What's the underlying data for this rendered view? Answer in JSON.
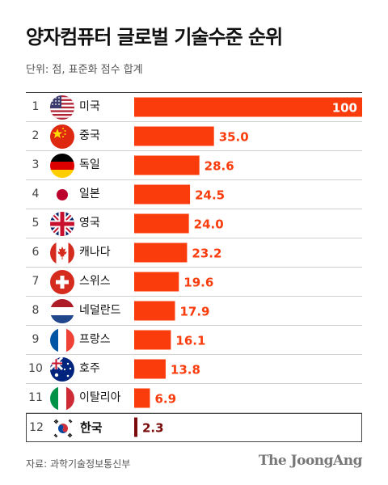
{
  "title": "양자컴퓨터 글로벌 기술수준 순위",
  "unit_note": "단위: 점, 표준화 점수 합계",
  "source": "자료: 과학기술정보통신부",
  "logo": "The JoongAng",
  "colors": {
    "bar": "#fa3c0c",
    "highlight_bar": "#7a0a0a",
    "label_inside": "#ffffff",
    "label_outside": "#fa3c0c",
    "highlight_label": "#7a0a0a"
  },
  "chart_data": {
    "type": "bar",
    "orientation": "horizontal",
    "categories": [
      "미국",
      "중국",
      "독일",
      "일본",
      "영국",
      "캐나다",
      "스위스",
      "네덜란드",
      "프랑스",
      "호주",
      "이탈리아",
      "한국"
    ],
    "ranks": [
      "1",
      "2",
      "3",
      "4",
      "5",
      "6",
      "7",
      "8",
      "9",
      "10",
      "11",
      "12"
    ],
    "values": [
      100,
      35.0,
      28.6,
      24.5,
      24.0,
      23.2,
      19.6,
      17.9,
      16.1,
      13.8,
      6.9,
      2.3
    ],
    "value_labels": [
      "100",
      "35.0",
      "28.6",
      "24.5",
      "24.0",
      "23.2",
      "19.6",
      "17.9",
      "16.1",
      "13.8",
      "6.9",
      "2.3"
    ],
    "flags": [
      "usa-flag-icon",
      "china-flag-icon",
      "germany-flag-icon",
      "japan-flag-icon",
      "uk-flag-icon",
      "canada-flag-icon",
      "switzerland-flag-icon",
      "netherlands-flag-icon",
      "france-flag-icon",
      "australia-flag-icon",
      "italy-flag-icon",
      "korea-flag-icon"
    ],
    "highlight_category": "한국",
    "xlim": [
      0,
      100
    ],
    "title": "양자컴퓨터 글로벌 기술수준 순위"
  }
}
